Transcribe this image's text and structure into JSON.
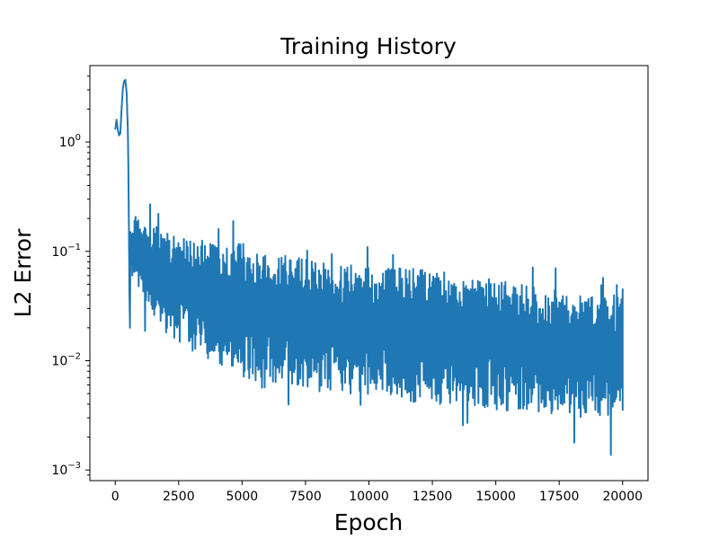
{
  "chart_data": {
    "type": "line",
    "title": "Training History",
    "xlabel": "Epoch",
    "ylabel": "L2 Error",
    "xlim": [
      -1000,
      21000
    ],
    "ylim": [
      0.0008,
      5.0
    ],
    "yscale": "log",
    "grid": false,
    "line_color": "#1f77b4",
    "xticks": [
      0,
      2500,
      5000,
      7500,
      10000,
      12500,
      15000,
      17500,
      20000
    ],
    "xtick_labels": [
      "0",
      "2500",
      "5000",
      "7500",
      "10000",
      "12500",
      "15000",
      "17500",
      "20000"
    ],
    "yticks": [
      {
        "value": 1,
        "base": "10",
        "exp": "0"
      },
      {
        "value": 0.1,
        "base": "10",
        "exp": "−1"
      },
      {
        "value": 0.01,
        "base": "10",
        "exp": "−2"
      },
      {
        "value": 0.001,
        "base": "10",
        "exp": "−3"
      }
    ],
    "series": [
      {
        "x": [
          0,
          50,
          100,
          150,
          200,
          250,
          300,
          350,
          400,
          450,
          500,
          520,
          540,
          560,
          580,
          600,
          650,
          700,
          800,
          1000,
          1500,
          2000,
          3000,
          4000,
          5000,
          6000,
          7000,
          8000,
          9000,
          10000,
          11000,
          12000,
          13000,
          14000,
          15000,
          16000,
          17000,
          18000,
          19000,
          20000
        ],
        "upper": [
          1.3,
          1.6,
          1.3,
          1.15,
          1.2,
          2.0,
          3.1,
          3.6,
          3.7,
          2.8,
          1.2,
          0.5,
          0.15,
          0.04,
          0.02,
          0.15,
          0.18,
          0.2,
          0.22,
          0.2,
          0.17,
          0.16,
          0.13,
          0.12,
          0.12,
          0.1,
          0.09,
          0.08,
          0.075,
          0.075,
          0.07,
          0.07,
          0.065,
          0.06,
          0.055,
          0.05,
          0.045,
          0.045,
          0.04,
          0.04
        ],
        "lower": [
          1.3,
          1.6,
          1.3,
          1.15,
          1.2,
          2.0,
          3.1,
          3.6,
          3.7,
          2.8,
          1.2,
          0.5,
          0.15,
          0.04,
          0.009,
          0.05,
          0.06,
          0.05,
          0.04,
          0.035,
          0.025,
          0.018,
          0.012,
          0.009,
          0.007,
          0.006,
          0.006,
          0.005,
          0.005,
          0.0045,
          0.0045,
          0.004,
          0.004,
          0.004,
          0.0035,
          0.0035,
          0.0033,
          0.003,
          0.003,
          0.003
        ],
        "spike_lows": [
          0.02,
          0.01,
          0.009,
          0.006,
          0.005,
          0.004,
          0.0035,
          0.003,
          0.0025,
          0.002,
          0.0015,
          0.0012,
          0.002,
          0.0018,
          0.0015,
          0.0025,
          0.002,
          0.0022,
          0.0018,
          0.0017
        ]
      }
    ]
  }
}
